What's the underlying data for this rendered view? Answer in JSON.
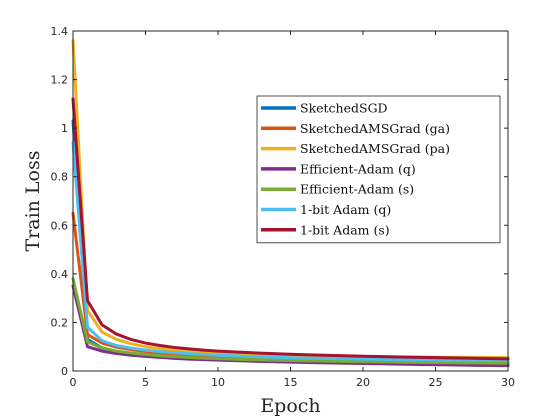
{
  "chart_data": {
    "type": "line",
    "xlabel": "Epoch",
    "ylabel": "Train Loss",
    "xlim": [
      0,
      30
    ],
    "ylim": [
      0,
      1.4
    ],
    "xticks": [
      "0",
      "5",
      "10",
      "15",
      "20",
      "25",
      "30"
    ],
    "yticks": [
      "0",
      "0.2",
      "0.4",
      "0.6",
      "0.8",
      "1",
      "1.2",
      "1.4"
    ],
    "grid": false,
    "legend_position": "upper-right",
    "x": [
      0,
      1,
      2,
      3,
      4,
      5,
      6,
      7,
      8,
      9,
      10,
      12,
      14,
      16,
      18,
      20,
      22,
      24,
      26,
      28,
      30
    ],
    "series": [
      {
        "name": "SketchedSGD",
        "color": "#0072BD",
        "values": [
          1.03,
          0.13,
          0.095,
          0.08,
          0.07,
          0.063,
          0.058,
          0.054,
          0.051,
          0.048,
          0.046,
          0.042,
          0.039,
          0.037,
          0.035,
          0.034,
          0.033,
          0.032,
          0.031,
          0.03,
          0.03
        ]
      },
      {
        "name": "SketchedAMSGrad (ga)",
        "color": "#D95319",
        "values": [
          0.65,
          0.15,
          0.115,
          0.098,
          0.088,
          0.08,
          0.074,
          0.069,
          0.065,
          0.062,
          0.059,
          0.055,
          0.052,
          0.05,
          0.048,
          0.047,
          0.046,
          0.045,
          0.044,
          0.043,
          0.042
        ]
      },
      {
        "name": "SketchedAMSGrad (pa)",
        "color": "#EDB120",
        "values": [
          1.36,
          0.25,
          0.16,
          0.13,
          0.112,
          0.1,
          0.092,
          0.086,
          0.081,
          0.077,
          0.074,
          0.069,
          0.066,
          0.063,
          0.061,
          0.06,
          0.058,
          0.057,
          0.056,
          0.056,
          0.055
        ]
      },
      {
        "name": "Efficient-Adam (q)",
        "color": "#7E2F8E",
        "values": [
          0.35,
          0.1,
          0.082,
          0.072,
          0.065,
          0.06,
          0.056,
          0.052,
          0.049,
          0.047,
          0.045,
          0.041,
          0.038,
          0.035,
          0.033,
          0.031,
          0.029,
          0.027,
          0.025,
          0.023,
          0.022
        ]
      },
      {
        "name": "Efficient-Adam (s)",
        "color": "#77AC30",
        "values": [
          0.38,
          0.12,
          0.095,
          0.082,
          0.074,
          0.068,
          0.063,
          0.059,
          0.056,
          0.053,
          0.051,
          0.047,
          0.044,
          0.042,
          0.04,
          0.038,
          0.037,
          0.035,
          0.034,
          0.033,
          0.032
        ]
      },
      {
        "name": "1-bit Adam (q)",
        "color": "#4DBEEE",
        "values": [
          0.94,
          0.18,
          0.125,
          0.105,
          0.094,
          0.086,
          0.08,
          0.075,
          0.071,
          0.068,
          0.065,
          0.06,
          0.056,
          0.053,
          0.051,
          0.049,
          0.047,
          0.046,
          0.045,
          0.044,
          0.043
        ]
      },
      {
        "name": "1-bit Adam (s)",
        "color": "#A2142F",
        "values": [
          1.12,
          0.29,
          0.19,
          0.152,
          0.13,
          0.115,
          0.105,
          0.097,
          0.091,
          0.086,
          0.082,
          0.076,
          0.071,
          0.067,
          0.064,
          0.061,
          0.058,
          0.056,
          0.054,
          0.052,
          0.05
        ]
      }
    ]
  }
}
